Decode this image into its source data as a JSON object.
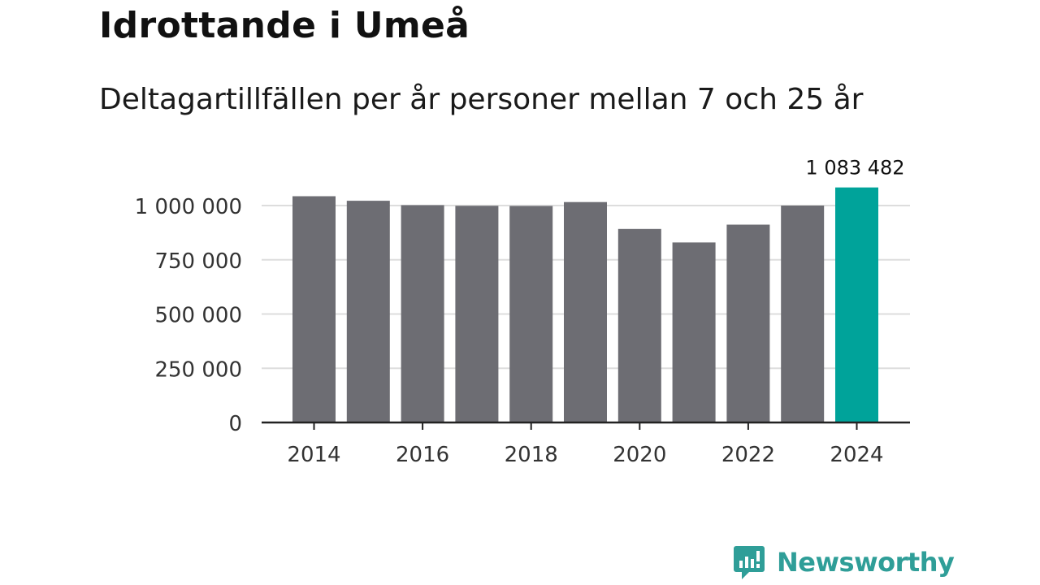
{
  "header": {
    "title": "Idrottande i Umeå",
    "subtitle": "Deltagartillfällen per år personer mellan 7 och 25 år"
  },
  "chart_data": {
    "type": "bar",
    "title": "Idrottande i Umeå",
    "subtitle": "Deltagartillfällen per år personer mellan 7 och 25 år",
    "xlabel": "",
    "ylabel": "",
    "categories": [
      "2014",
      "2015",
      "2016",
      "2017",
      "2018",
      "2019",
      "2020",
      "2021",
      "2022",
      "2023",
      "2024"
    ],
    "values": [
      1043000,
      1022000,
      1002000,
      999000,
      998000,
      1016000,
      892000,
      830000,
      912000,
      1000000,
      1083482
    ],
    "highlight_index": 10,
    "highlight_label": "1 083 482",
    "ylim": [
      0,
      1100000
    ],
    "yticks": [
      0,
      250000,
      500000,
      750000,
      1000000
    ],
    "ytick_labels": [
      "0",
      "250 000",
      "500 000",
      "750 000",
      "1 000 000"
    ],
    "xtick_labels": [
      "2014",
      "2016",
      "2018",
      "2020",
      "2022",
      "2024"
    ],
    "grid": true,
    "colors": {
      "bar": "#6d6d73",
      "highlight": "#00a39a",
      "grid": "#dddddd",
      "axis": "#222222",
      "tick_text": "#333333"
    }
  },
  "brand": {
    "name": "Newsworthy",
    "color": "#2f9e98",
    "icon": "newsworthy-logo-icon"
  }
}
